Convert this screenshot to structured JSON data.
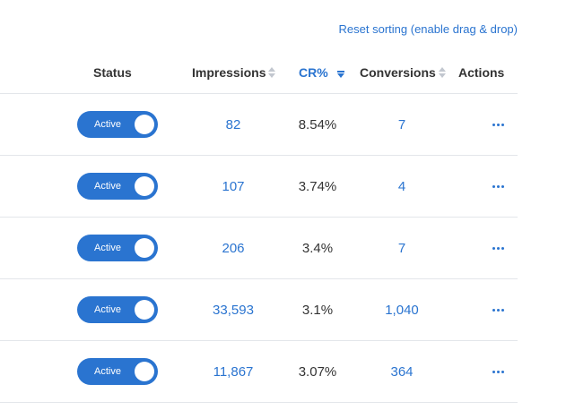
{
  "reset_link": "Reset sorting (enable drag & drop)",
  "headers": {
    "status": "Status",
    "impressions": "Impressions",
    "cr": "CR%",
    "conversions": "Conversions",
    "actions": "Actions"
  },
  "sort": {
    "active_column": "CR%",
    "direction": "descending"
  },
  "colors": {
    "accent": "#2a74d0",
    "divider": "#e3e6ea"
  },
  "rows": [
    {
      "status": "Active",
      "impressions": "82",
      "cr": "8.54%",
      "conversions": "7",
      "actions_icon": "more-horizontal-icon"
    },
    {
      "status": "Active",
      "impressions": "107",
      "cr": "3.74%",
      "conversions": "4",
      "actions_icon": "more-horizontal-icon"
    },
    {
      "status": "Active",
      "impressions": "206",
      "cr": "3.4%",
      "conversions": "7",
      "actions_icon": "more-horizontal-icon"
    },
    {
      "status": "Active",
      "impressions": "33,593",
      "cr": "3.1%",
      "conversions": "1,040",
      "actions_icon": "more-horizontal-icon"
    },
    {
      "status": "Active",
      "impressions": "11,867",
      "cr": "3.07%",
      "conversions": "364",
      "actions_icon": "more-horizontal-icon"
    }
  ]
}
